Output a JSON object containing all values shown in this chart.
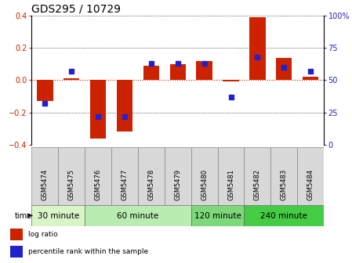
{
  "title": "GDS295 / 10729",
  "samples": [
    "GSM5474",
    "GSM5475",
    "GSM5476",
    "GSM5477",
    "GSM5478",
    "GSM5479",
    "GSM5480",
    "GSM5481",
    "GSM5482",
    "GSM5483",
    "GSM5484"
  ],
  "log_ratio": [
    -0.13,
    0.01,
    -0.36,
    -0.32,
    0.09,
    0.1,
    0.12,
    -0.005,
    0.39,
    0.14,
    0.02
  ],
  "percentile": [
    32,
    57,
    22,
    22,
    63,
    63,
    63,
    37,
    68,
    60,
    57
  ],
  "groups": [
    {
      "label": "30 minute",
      "start": 0,
      "end": 1,
      "color": "#d8f5c8"
    },
    {
      "label": "60 minute",
      "start": 2,
      "end": 5,
      "color": "#b8ecb0"
    },
    {
      "label": "120 minute",
      "start": 6,
      "end": 7,
      "color": "#7dd87a"
    },
    {
      "label": "240 minute",
      "start": 8,
      "end": 10,
      "color": "#44cc44"
    }
  ],
  "ylim_left": [
    -0.4,
    0.4
  ],
  "ylim_right": [
    0,
    100
  ],
  "yticks_left": [
    -0.4,
    -0.2,
    0.0,
    0.2,
    0.4
  ],
  "yticks_right": [
    0,
    25,
    50,
    75,
    100
  ],
  "ytick_labels_right": [
    "0",
    "25",
    "50",
    "75",
    "100%"
  ],
  "bar_color": "#cc2200",
  "dot_color": "#2222cc",
  "bg_color": "#ffffff",
  "plot_bg": "#ffffff",
  "zero_line_color": "#cc2200",
  "legend_log": "log ratio",
  "legend_pct": "percentile rank within the sample",
  "time_label": "time",
  "title_fontsize": 10,
  "tick_fontsize": 7,
  "label_fontsize": 6,
  "group_fontsize": 7.5
}
